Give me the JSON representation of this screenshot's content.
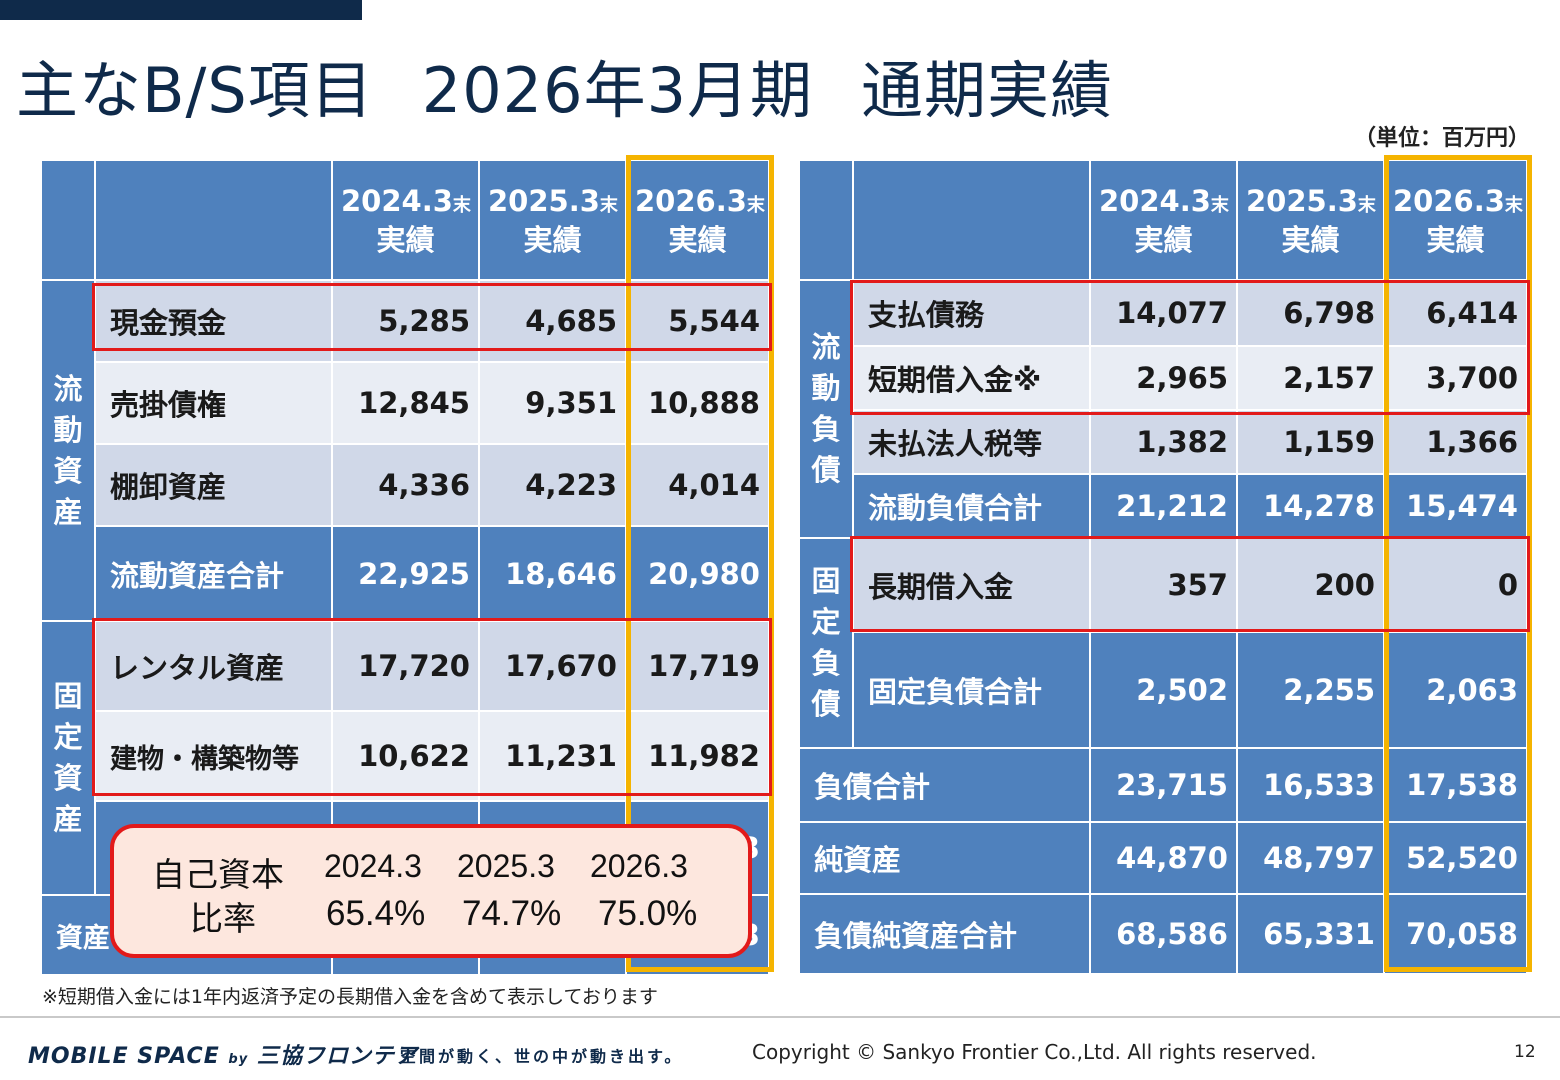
{
  "title": {
    "main": "主なB/S項目",
    "period": "2026年3月期",
    "sub": "通期実績"
  },
  "unit": "（単位：百万円）",
  "columns": [
    {
      "year": "2024.3",
      "suffix": "末",
      "kind": "実績"
    },
    {
      "year": "2025.3",
      "suffix": "末",
      "kind": "実績"
    },
    {
      "year": "2026.3",
      "suffix": "末",
      "kind": "実績"
    }
  ],
  "assets": {
    "current_category": [
      "流",
      "動",
      "資",
      "産"
    ],
    "fixed_category": [
      "固",
      "定",
      "資",
      "産"
    ],
    "rows": [
      {
        "label": "現金預金",
        "values": [
          "5,285",
          "4,685",
          "5,544"
        ]
      },
      {
        "label": "売掛債権",
        "values": [
          "12,845",
          "9,351",
          "10,888"
        ]
      },
      {
        "label": "棚卸資産",
        "values": [
          "4,336",
          "4,223",
          "4,014"
        ]
      },
      {
        "label": "流動資産合計",
        "values": [
          "22,925",
          "18,646",
          "20,980"
        ]
      },
      {
        "label": "レンタル資産",
        "values": [
          "17,720",
          "17,670",
          "17,719"
        ]
      },
      {
        "label": "建物・構築物等",
        "values": [
          "10,622",
          "11,231",
          "11,982"
        ]
      }
    ],
    "hidden_total_label": "資産",
    "hidden_total_tail": "3"
  },
  "liabilities": {
    "current_category": [
      "流",
      "動",
      "負",
      "債"
    ],
    "fixed_category": [
      "固",
      "定",
      "負",
      "債"
    ],
    "rows": [
      {
        "label": "支払債務",
        "values": [
          "14,077",
          "6,798",
          "6,414"
        ]
      },
      {
        "label": "短期借入金※",
        "values": [
          "2,965",
          "2,157",
          "3,700"
        ]
      },
      {
        "label": "未払法人税等",
        "values": [
          "1,382",
          "1,159",
          "1,366"
        ]
      },
      {
        "label": "流動負債合計",
        "values": [
          "21,212",
          "14,278",
          "15,474"
        ]
      },
      {
        "label": "長期借入金",
        "values": [
          "357",
          "200",
          "0"
        ]
      },
      {
        "label": "固定負債合計",
        "values": [
          "2,502",
          "2,255",
          "2,063"
        ]
      },
      {
        "label": "負債合計",
        "values": [
          "23,715",
          "16,533",
          "17,538"
        ]
      },
      {
        "label": "純資産",
        "values": [
          "44,870",
          "48,797",
          "52,520"
        ]
      },
      {
        "label": "負債純資産合計",
        "values": [
          "68,586",
          "65,331",
          "70,058"
        ]
      }
    ]
  },
  "equity_ratio": {
    "label1": "自己資本",
    "label2": "比率",
    "years": [
      "2024.3",
      "2025.3",
      "2026.3"
    ],
    "values": [
      "65.4%",
      "74.7%",
      "75.0%"
    ]
  },
  "note": "※短期借入金には1年内返済予定の長期借入金を含めて表示しております",
  "footer": {
    "brand": "MOBILE SPACE",
    "brand_by": "by",
    "brand_company": "三協フロンテア",
    "slogan": "空間が動く、世の中が動き出す。",
    "copyright": "Copyright © Sankyo Frontier Co.,Ltd. All rights reserved.",
    "page": "12"
  },
  "colors": {
    "header_blue": "#4f81bd",
    "navy": "#0f2a4a",
    "highlight_red": "#e21a1a",
    "highlight_yellow": "#f5b400",
    "callout_fill": "#fde7de"
  }
}
